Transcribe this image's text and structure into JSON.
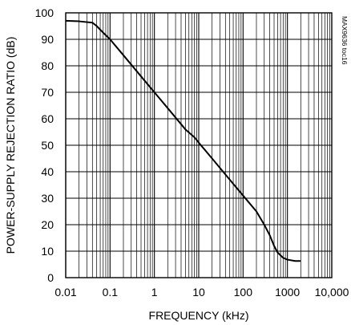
{
  "chart_data": {
    "type": "line",
    "title": "",
    "xlabel": "FREQUENCY (kHz)",
    "ylabel": "POWER-SUPPLY REJECTION RATIO (dB)",
    "x_scale": "log",
    "xlim": [
      0.01,
      10000
    ],
    "ylim": [
      0,
      100
    ],
    "grid": true,
    "x_tick_labels": [
      "0.01",
      "0.1",
      "1",
      "10",
      "100",
      "1000",
      "10,000"
    ],
    "x_tick_values": [
      0.01,
      0.1,
      1,
      10,
      100,
      1000,
      10000
    ],
    "y_tick_labels": [
      "0",
      "10",
      "20",
      "30",
      "40",
      "50",
      "60",
      "70",
      "80",
      "90",
      "100"
    ],
    "y_tick_values": [
      0,
      10,
      20,
      30,
      40,
      50,
      60,
      70,
      80,
      90,
      100
    ],
    "annotation": "MAX9636 toc16",
    "series": [
      {
        "x": [
          0.01,
          0.02,
          0.04,
          0.05,
          0.07,
          0.1,
          0.2,
          0.5,
          1,
          2,
          5,
          8,
          10,
          20,
          50,
          100,
          200,
          300,
          400,
          500,
          600,
          800,
          1000,
          1500,
          2000
        ],
        "y": [
          97,
          96.8,
          96.3,
          95,
          92.5,
          90,
          84,
          76,
          70,
          64,
          56,
          53,
          51,
          45,
          37,
          31,
          25,
          20,
          16,
          12,
          9.5,
          7.5,
          6.8,
          6.3,
          6.3
        ]
      }
    ]
  },
  "colors": {
    "line": "#000000",
    "grid": "#000000",
    "background": "#ffffff"
  }
}
